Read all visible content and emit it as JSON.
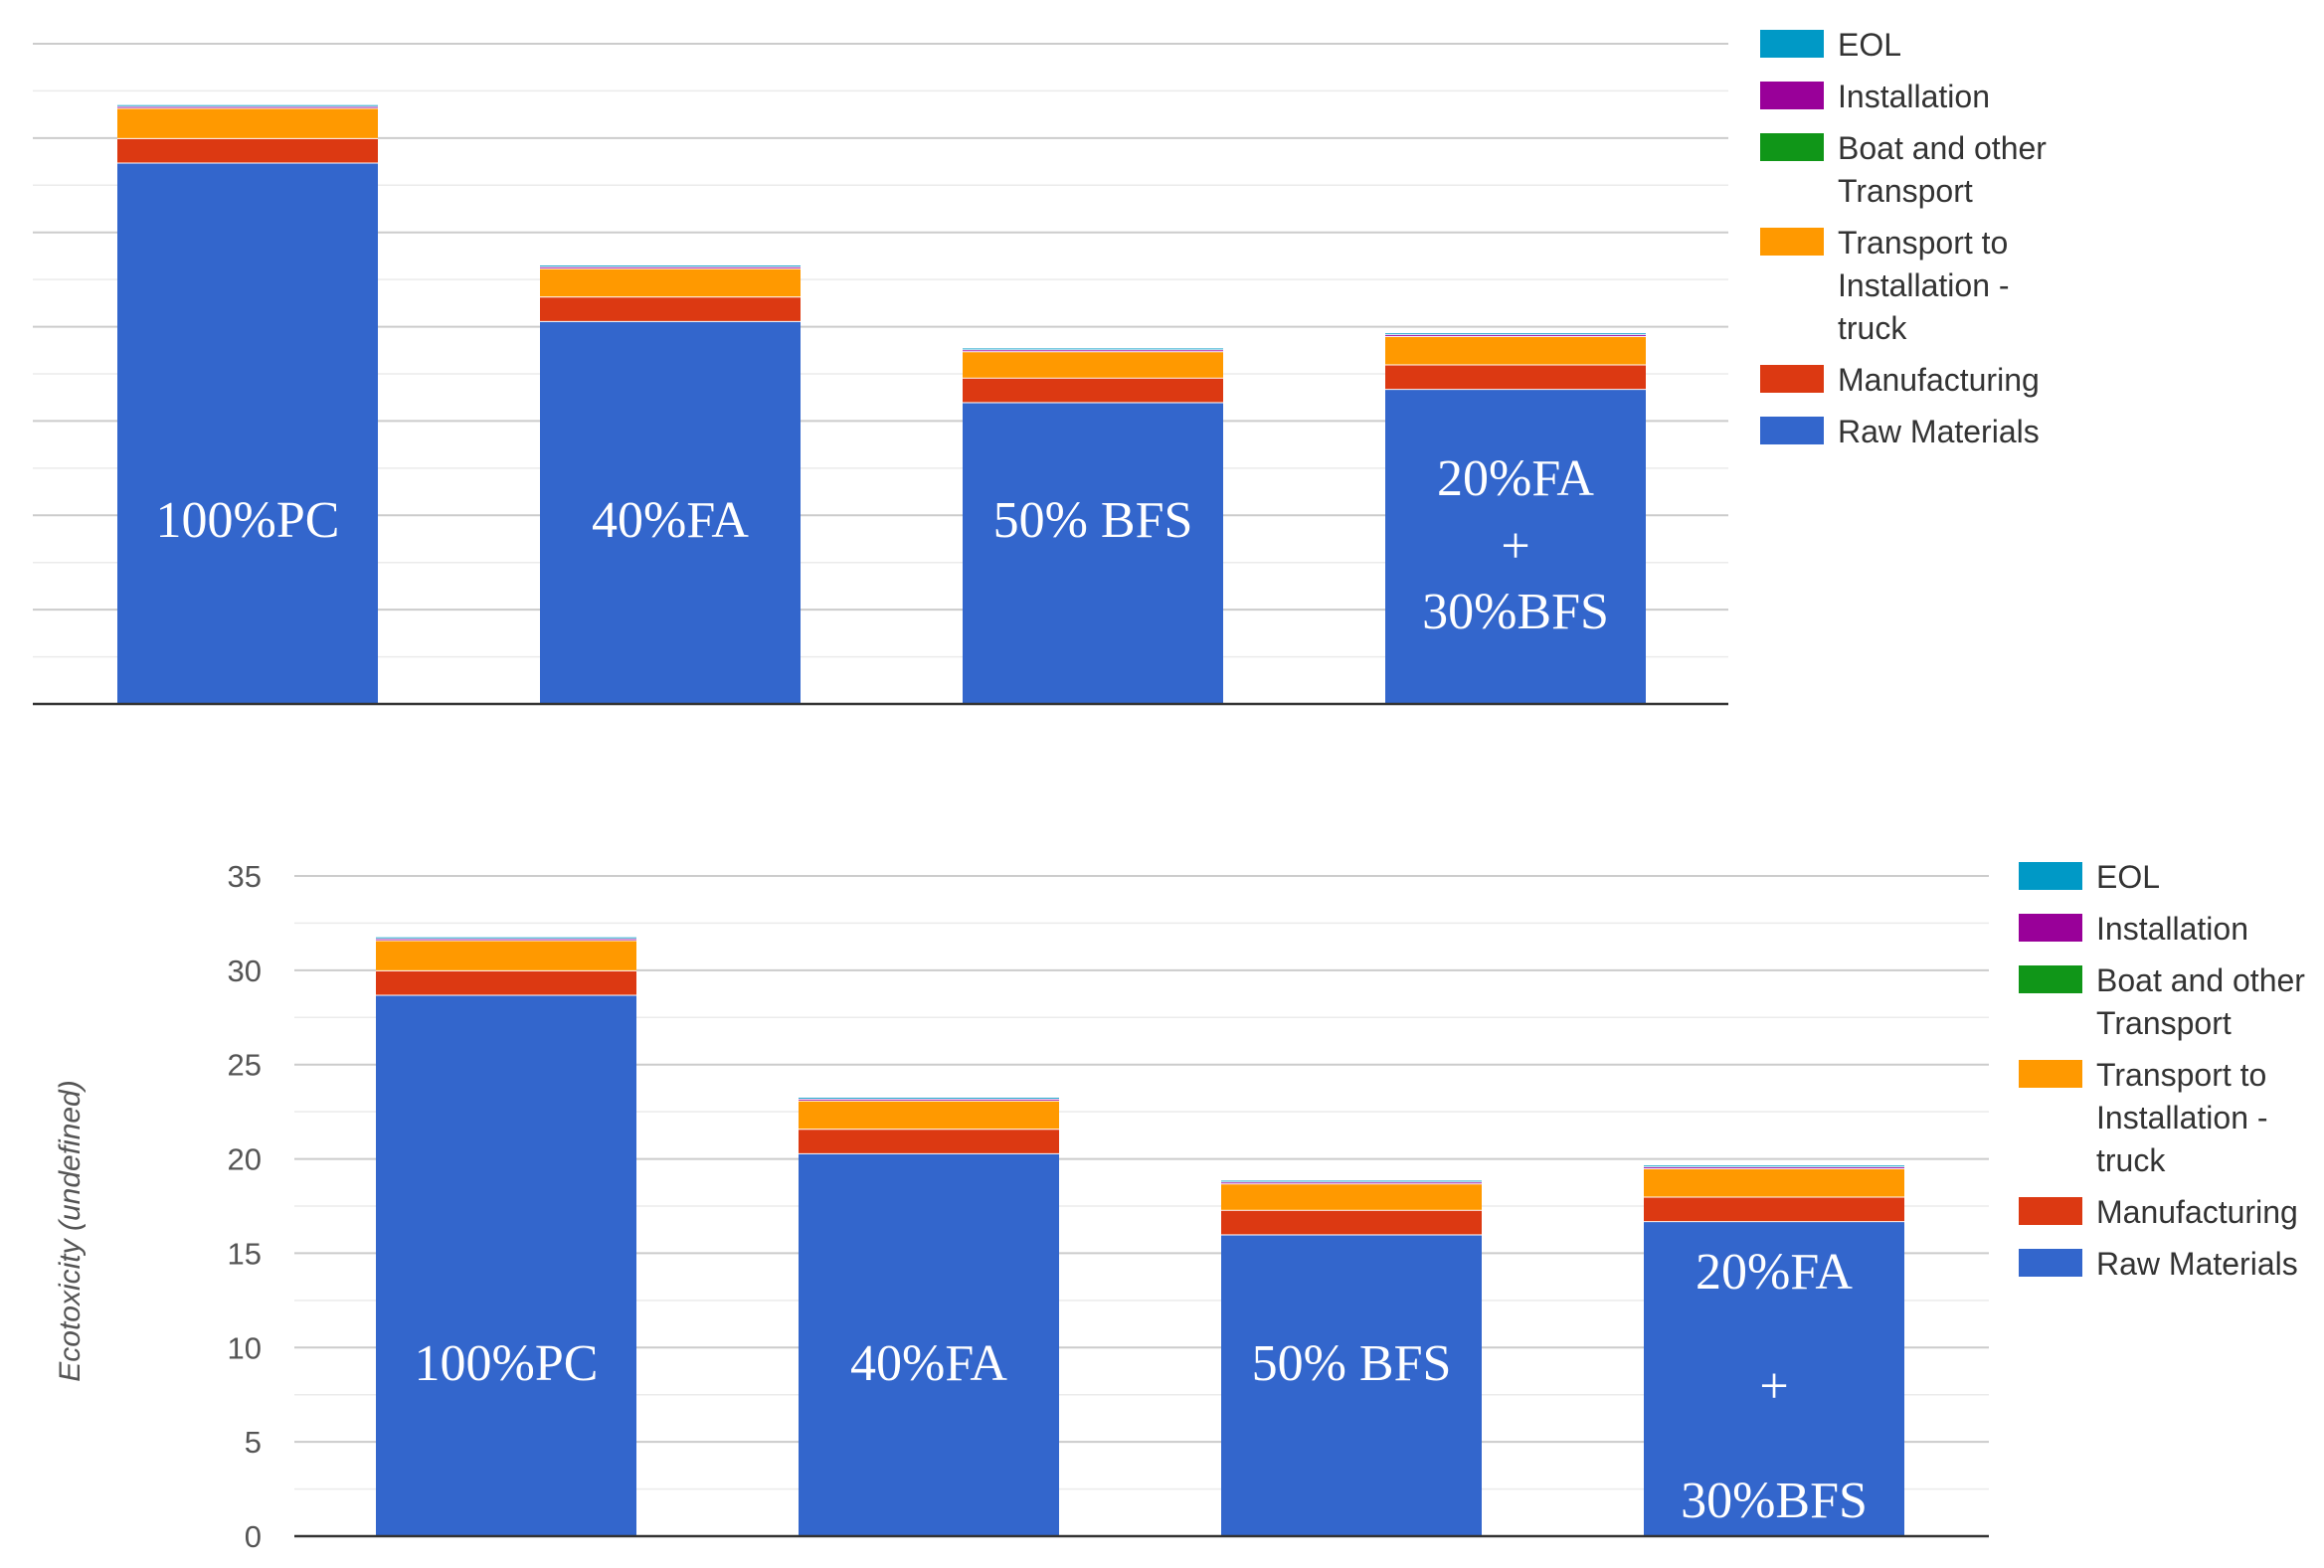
{
  "chart_data": [
    {
      "type": "bar",
      "stacked": true,
      "categories": [
        "100%PC",
        "40%FA",
        "50% BFS",
        "20%FA + 30%BFS"
      ],
      "bar_labels": [
        [
          "100%PC"
        ],
        [
          "40%FA"
        ],
        [
          "50% BFS"
        ],
        [
          "20%FA",
          "+",
          "30%BFS"
        ]
      ],
      "series": [
        {
          "name": "Raw Materials",
          "color": "#3366cc",
          "values": [
            28.7,
            20.3,
            16.0,
            16.7
          ]
        },
        {
          "name": "Manufacturing",
          "color": "#dc3912",
          "values": [
            1.3,
            1.3,
            1.3,
            1.3
          ]
        },
        {
          "name": "Transport to Installation - truck",
          "color": "#ff9900",
          "values": [
            1.6,
            1.5,
            1.4,
            1.5
          ]
        },
        {
          "name": "Boat and other Transport",
          "color": "#109618",
          "values": [
            0.0,
            0.0,
            0.0,
            0.0
          ]
        },
        {
          "name": "Installation",
          "color": "#990099",
          "values": [
            0.1,
            0.1,
            0.1,
            0.1
          ]
        },
        {
          "name": "EOL",
          "color": "#0099c6",
          "values": [
            0.1,
            0.1,
            0.1,
            0.1
          ]
        }
      ],
      "legend": [
        "EOL",
        "Installation",
        "Boat and other Transport",
        "Transport to Installation - truck",
        "Manufacturing",
        "Raw Materials"
      ],
      "legend_position": "right",
      "ylim": [
        0,
        35
      ],
      "yticks": [],
      "ylabel": "",
      "grid": true
    },
    {
      "type": "bar",
      "stacked": true,
      "categories": [
        "100%PC",
        "40%FA",
        "50% BFS",
        "20%FA + 30%BFS"
      ],
      "bar_labels": [
        [
          "100%PC"
        ],
        [
          "40%FA"
        ],
        [
          "50% BFS"
        ],
        [
          "20%FA",
          "+",
          "30%BFS"
        ]
      ],
      "series": [
        {
          "name": "Raw Materials",
          "color": "#3366cc",
          "values": [
            28.7,
            20.3,
            16.0,
            16.7
          ]
        },
        {
          "name": "Manufacturing",
          "color": "#dc3912",
          "values": [
            1.3,
            1.3,
            1.3,
            1.3
          ]
        },
        {
          "name": "Transport to Installation - truck",
          "color": "#ff9900",
          "values": [
            1.6,
            1.5,
            1.4,
            1.5
          ]
        },
        {
          "name": "Boat and other Transport",
          "color": "#109618",
          "values": [
            0.0,
            0.0,
            0.0,
            0.0
          ]
        },
        {
          "name": "Installation",
          "color": "#990099",
          "values": [
            0.1,
            0.1,
            0.1,
            0.1
          ]
        },
        {
          "name": "EOL",
          "color": "#0099c6",
          "values": [
            0.1,
            0.1,
            0.1,
            0.1
          ]
        }
      ],
      "legend": [
        "EOL",
        "Installation",
        "Boat and other Transport",
        "Transport to Installation - truck",
        "Manufacturing",
        "Raw Materials"
      ],
      "legend_position": "right",
      "ylim": [
        0,
        35
      ],
      "yticks": [
        "0",
        "5",
        "10",
        "15",
        "20",
        "25",
        "30",
        "35"
      ],
      "ylabel": "Ecotoxicity (undefined)",
      "grid": true
    }
  ]
}
